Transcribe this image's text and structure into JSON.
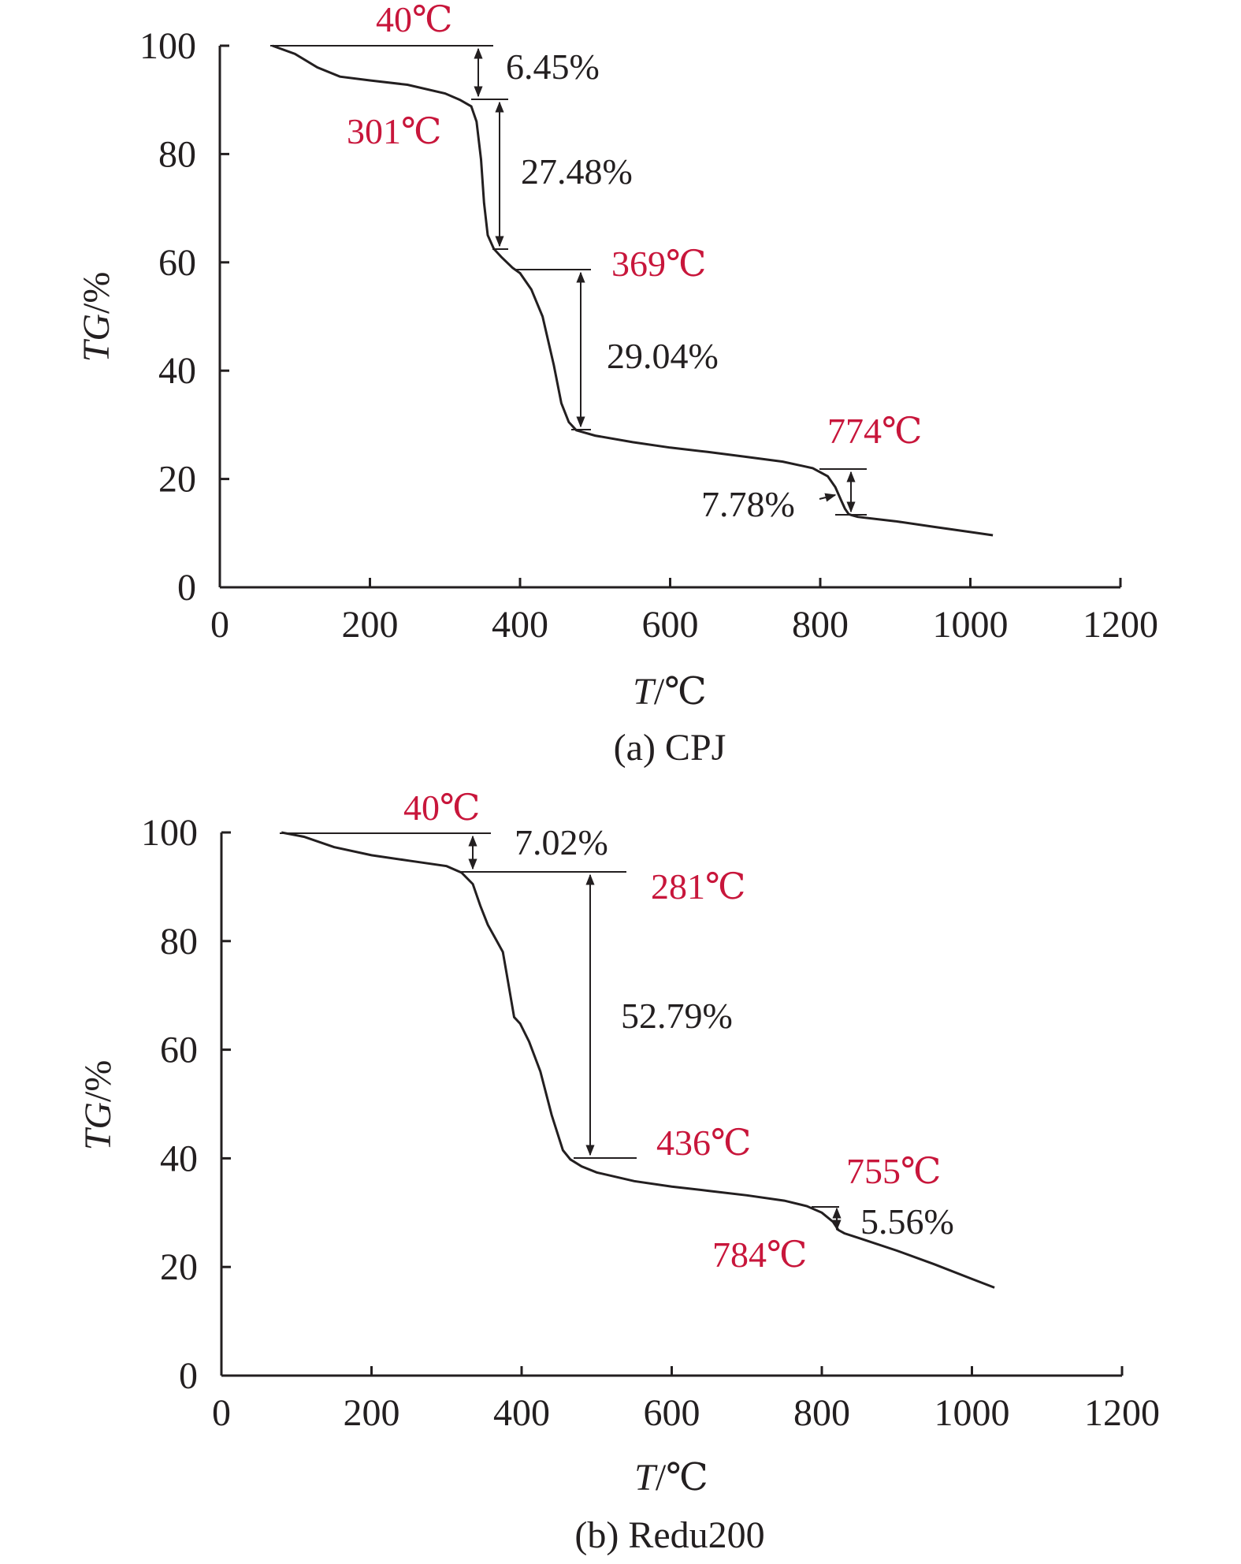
{
  "colors": {
    "ink": "#231f20",
    "temp_annotation": "#c8163b"
  },
  "chart_data": [
    {
      "type": "line",
      "caption": "(a) CPJ",
      "xlabel": {
        "italic": "T",
        "unit": "/℃"
      },
      "ylabel": {
        "italic": "TG",
        "unit": "/%"
      },
      "xlim": [
        0,
        1200
      ],
      "ylim": [
        0,
        100
      ],
      "xticks": [
        "0",
        "200",
        "400",
        "600",
        "800",
        "1000",
        "1200"
      ],
      "yticks": [
        "0",
        "20",
        "40",
        "60",
        "80",
        "100"
      ],
      "series": [
        {
          "x": [
            70,
            100,
            130,
            160,
            200,
            250,
            300,
            320,
            335,
            342,
            348,
            352,
            357,
            365,
            375,
            390,
            400,
            415,
            430,
            445,
            455,
            465,
            475,
            500,
            550,
            600,
            650,
            700,
            750,
            790,
            810,
            820,
            828,
            833,
            838,
            842,
            850,
            900,
            950,
            1000,
            1030
          ],
          "y": [
            100,
            98.5,
            96,
            94.3,
            93.6,
            92.8,
            91.2,
            90,
            88.8,
            86,
            79,
            71,
            65,
            62.5,
            61,
            59,
            58,
            55,
            50,
            41,
            34,
            30.5,
            29,
            28,
            26.8,
            25.8,
            25,
            24.1,
            23.2,
            22,
            20.5,
            18.5,
            16,
            14.5,
            13.5,
            13.3,
            13,
            12.2,
            11.2,
            10.2,
            9.6
          ]
        }
      ],
      "annotations": {
        "temps": [
          "40℃",
          "301℃",
          "369℃",
          "774℃"
        ],
        "losses": [
          "6.45%",
          "27.48%",
          "29.04%",
          "7.78%"
        ]
      }
    },
    {
      "type": "line",
      "caption": "(b) Redu200",
      "xlabel": {
        "italic": "T",
        "unit": "/℃"
      },
      "ylabel": {
        "italic": "TG",
        "unit": "/%"
      },
      "xlim": [
        0,
        1200
      ],
      "ylim": [
        0,
        100
      ],
      "xticks": [
        "0",
        "200",
        "400",
        "600",
        "800",
        "1000",
        "1200"
      ],
      "yticks": [
        "0",
        "20",
        "40",
        "60",
        "80",
        "100"
      ],
      "series": [
        {
          "x": [
            80,
            110,
            150,
            200,
            250,
            300,
            320,
            335,
            345,
            355,
            365,
            375,
            380,
            390,
            398,
            410,
            425,
            440,
            455,
            465,
            480,
            500,
            550,
            600,
            650,
            700,
            750,
            780,
            800,
            815,
            822,
            830,
            850,
            900,
            950,
            1000,
            1030
          ],
          "y": [
            100,
            99.2,
            97.3,
            95.8,
            94.8,
            93.8,
            92.6,
            90.5,
            86.5,
            83,
            80.5,
            78,
            74,
            66,
            64.8,
            61.5,
            56,
            48,
            41.5,
            39.8,
            38.5,
            37.4,
            35.8,
            34.8,
            34,
            33.2,
            32.2,
            31.2,
            30,
            28.3,
            26.8,
            26.2,
            25.3,
            23,
            20.5,
            17.8,
            16.2
          ]
        }
      ],
      "annotations": {
        "temps": [
          "40℃",
          "281℃",
          "436℃",
          "755℃",
          "784℃"
        ],
        "losses": [
          "7.02%",
          "52.79%",
          "5.56%"
        ]
      }
    }
  ]
}
